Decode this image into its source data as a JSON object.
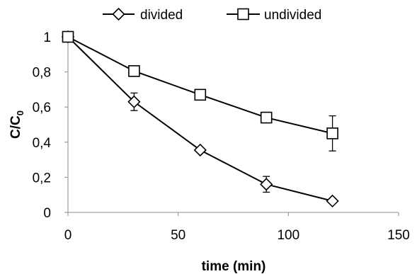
{
  "chart_data": {
    "type": "line",
    "title": "",
    "xlabel": "time (min)",
    "ylabel_main": "C/C",
    "ylabel_sub": "0",
    "xlim": [
      0,
      150
    ],
    "ylim": [
      0,
      1
    ],
    "xticks": [
      0,
      50,
      100,
      150
    ],
    "yticks": [
      0,
      0.2,
      0.4,
      0.6,
      0.8,
      1
    ],
    "xtick_labels": [
      "0",
      "50",
      "100",
      "150"
    ],
    "ytick_labels": [
      "0",
      "0,2",
      "0,4",
      "0,6",
      "0,8",
      "1"
    ],
    "grid": false,
    "legend_position": "top",
    "series": [
      {
        "name": "divided",
        "marker": "diamond",
        "color": "#000000",
        "x": [
          0,
          30,
          60,
          90,
          120
        ],
        "y": [
          1.0,
          0.63,
          0.355,
          0.16,
          0.065
        ],
        "err": [
          0.0,
          0.05,
          0.01,
          0.045,
          0.01
        ]
      },
      {
        "name": "undivided",
        "marker": "square",
        "color": "#000000",
        "x": [
          0,
          30,
          60,
          90,
          120
        ],
        "y": [
          1.0,
          0.805,
          0.67,
          0.54,
          0.45
        ],
        "err": [
          0.0,
          0.01,
          0.01,
          0.015,
          0.1
        ]
      }
    ]
  }
}
